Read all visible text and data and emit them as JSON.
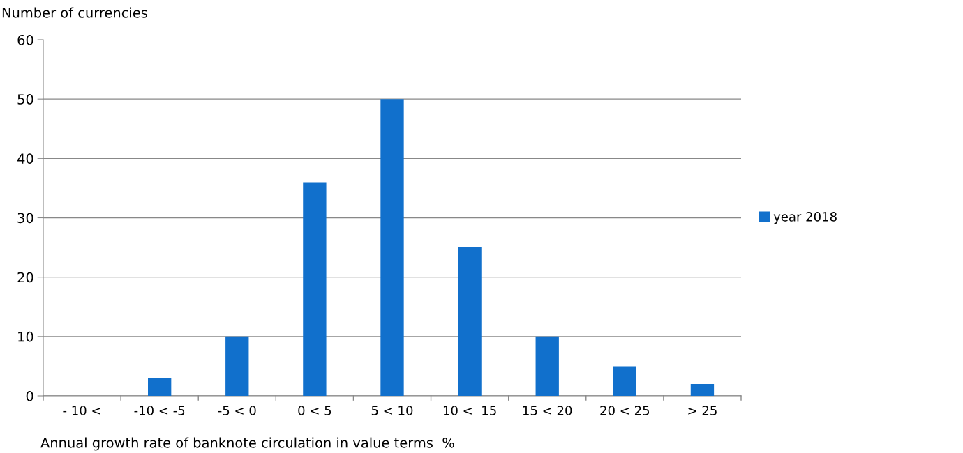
{
  "chart_data": {
    "type": "bar",
    "categories": [
      "- 10 <",
      "-10 < -5",
      "-5 < 0",
      "0 < 5",
      "5 < 10",
      "10 <  15",
      "15 < 20",
      "20 < 25",
      "> 25"
    ],
    "series": [
      {
        "name": "year 2018",
        "color": "#1170cc",
        "values": [
          0,
          3,
          10,
          36,
          50,
          25,
          10,
          5,
          2
        ]
      }
    ],
    "ylabel": "Number of currencies",
    "xlabel": "Annual growth rate of banknote circulation in value terms  %",
    "ylim": [
      0,
      60
    ],
    "yticks": [
      0,
      10,
      20,
      30,
      40,
      50,
      60
    ],
    "grid": "y",
    "legend": "right"
  }
}
